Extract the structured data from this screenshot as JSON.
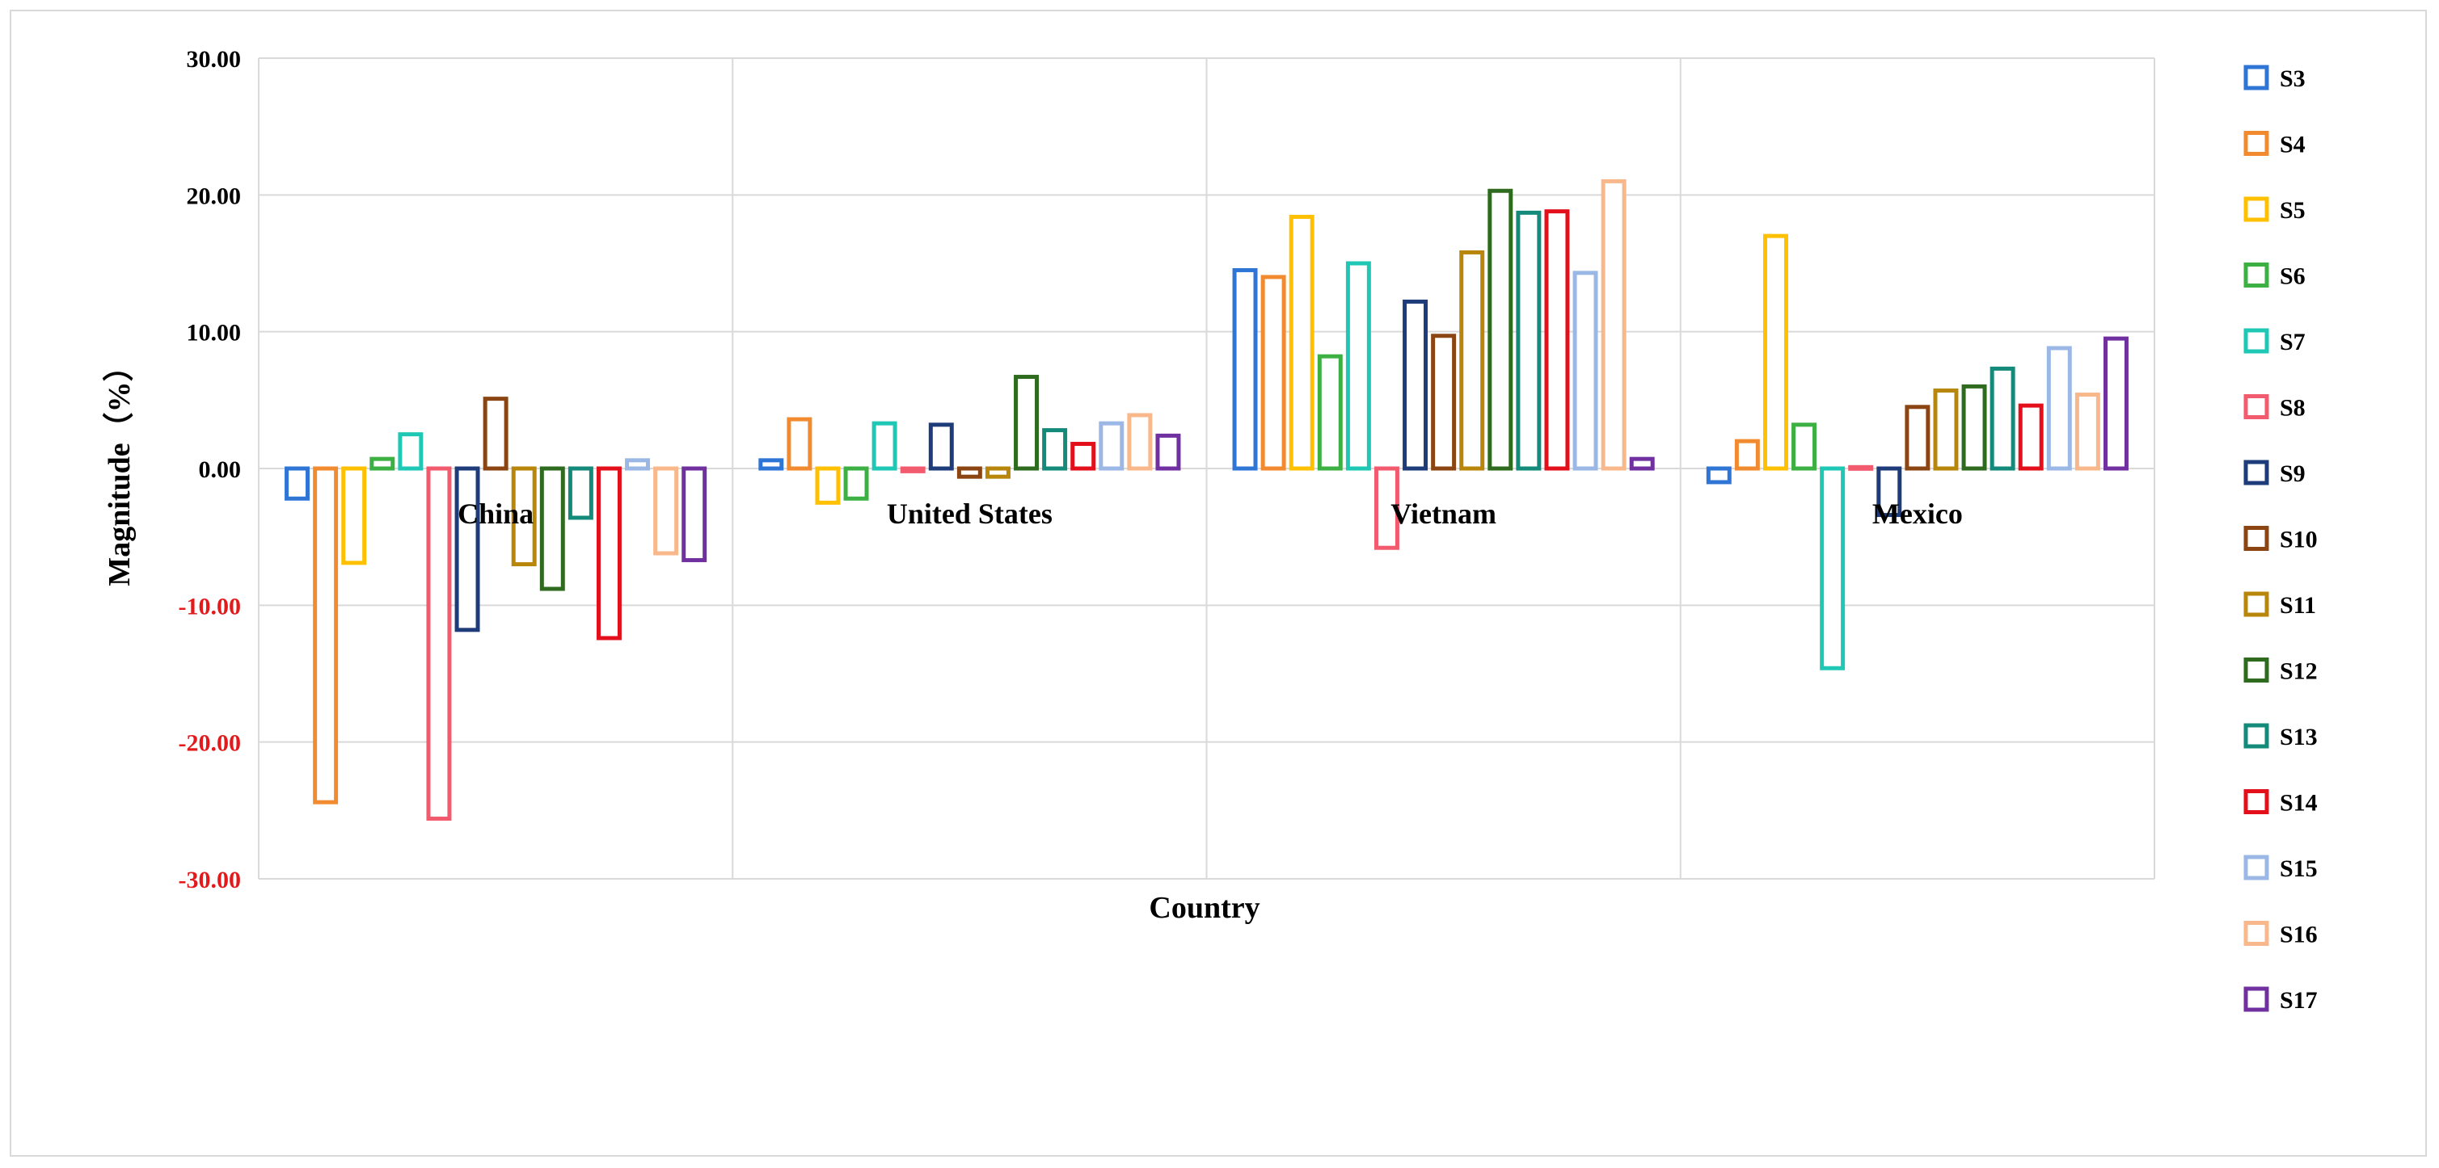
{
  "chart_data": {
    "type": "bar",
    "xlabel": "Country",
    "ylabel": "Magnitude（%）",
    "ylim": [
      -30,
      30
    ],
    "yticks": [
      "30.00",
      "20.00",
      "10.00",
      "0.00",
      "-10.00",
      "-20.00",
      "-30.00"
    ],
    "negative_tick_color": "#e31a1c",
    "grid": true,
    "legend_position": "right",
    "categories": [
      "China",
      "United States",
      "Vietnam",
      "Mexico"
    ],
    "series": [
      {
        "name": "S3",
        "color": "#2e75d6",
        "values": [
          -2.2,
          0.6,
          14.5,
          -1.0
        ]
      },
      {
        "name": "S4",
        "color": "#f28b30",
        "values": [
          -24.4,
          3.6,
          14.0,
          2.0
        ]
      },
      {
        "name": "S5",
        "color": "#ffc000",
        "values": [
          -6.9,
          -2.5,
          18.4,
          17.0
        ]
      },
      {
        "name": "S6",
        "color": "#3cb043",
        "values": [
          0.7,
          -2.2,
          8.2,
          3.2
        ]
      },
      {
        "name": "S7",
        "color": "#1ec8b4",
        "values": [
          2.5,
          3.3,
          15.0,
          -14.6
        ]
      },
      {
        "name": "S8",
        "color": "#f25a6e",
        "values": [
          -25.6,
          -0.2,
          -5.8,
          0.1
        ]
      },
      {
        "name": "S9",
        "color": "#1f3c7a",
        "values": [
          -11.8,
          3.2,
          12.2,
          -3.4
        ]
      },
      {
        "name": "S10",
        "color": "#8b4513",
        "values": [
          5.1,
          -0.6,
          9.7,
          4.5
        ]
      },
      {
        "name": "S11",
        "color": "#b8860b",
        "values": [
          -7.0,
          -0.6,
          15.8,
          5.7
        ]
      },
      {
        "name": "S12",
        "color": "#2e6b1f",
        "values": [
          -8.8,
          6.7,
          20.3,
          6.0
        ]
      },
      {
        "name": "S13",
        "color": "#138a7a",
        "values": [
          -3.6,
          2.8,
          18.7,
          7.3
        ]
      },
      {
        "name": "S14",
        "color": "#e3101c",
        "values": [
          -12.4,
          1.8,
          18.8,
          4.6
        ]
      },
      {
        "name": "S15",
        "color": "#9ab7e6",
        "values": [
          0.6,
          3.3,
          14.3,
          8.8
        ]
      },
      {
        "name": "S16",
        "color": "#f8b88b",
        "values": [
          -6.2,
          3.9,
          21.0,
          5.4
        ]
      },
      {
        "name": "S17",
        "color": "#7030a0",
        "values": [
          -6.7,
          2.4,
          0.7,
          9.5
        ]
      }
    ]
  }
}
